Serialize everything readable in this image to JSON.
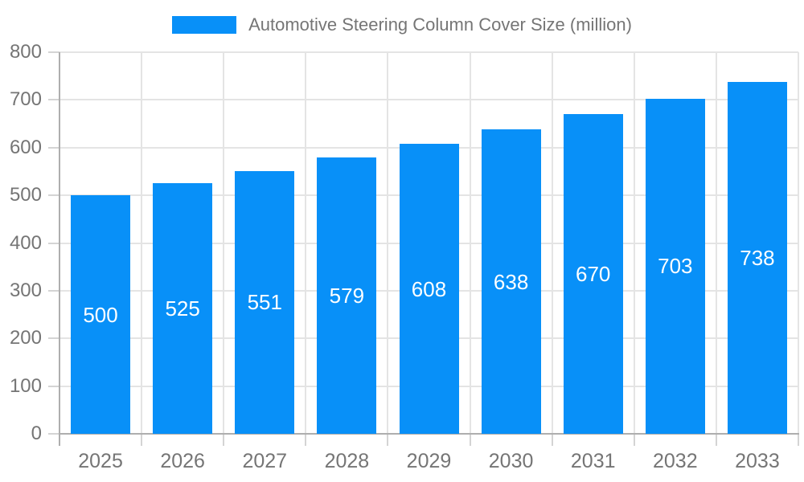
{
  "chart_data": {
    "type": "bar",
    "title": "Automotive Steering Column Cover Size (million)",
    "categories": [
      "2025",
      "2026",
      "2027",
      "2028",
      "2029",
      "2030",
      "2031",
      "2032",
      "2033"
    ],
    "values": [
      500,
      525,
      551,
      579,
      608,
      638,
      670,
      703,
      738
    ],
    "xlabel": "",
    "ylabel": "",
    "ylim": [
      0,
      800
    ],
    "y_tick_step": 100,
    "grid": true,
    "legend_position": "top",
    "colors": {
      "bar": "#0890f8",
      "bar_value_text": "#ffffff",
      "axis_text": "#757575",
      "grid_line": "#e4e4e4",
      "axis_line": "#aeaeae",
      "tick_line": "#d4d4d4",
      "background": "#ffffff"
    }
  }
}
